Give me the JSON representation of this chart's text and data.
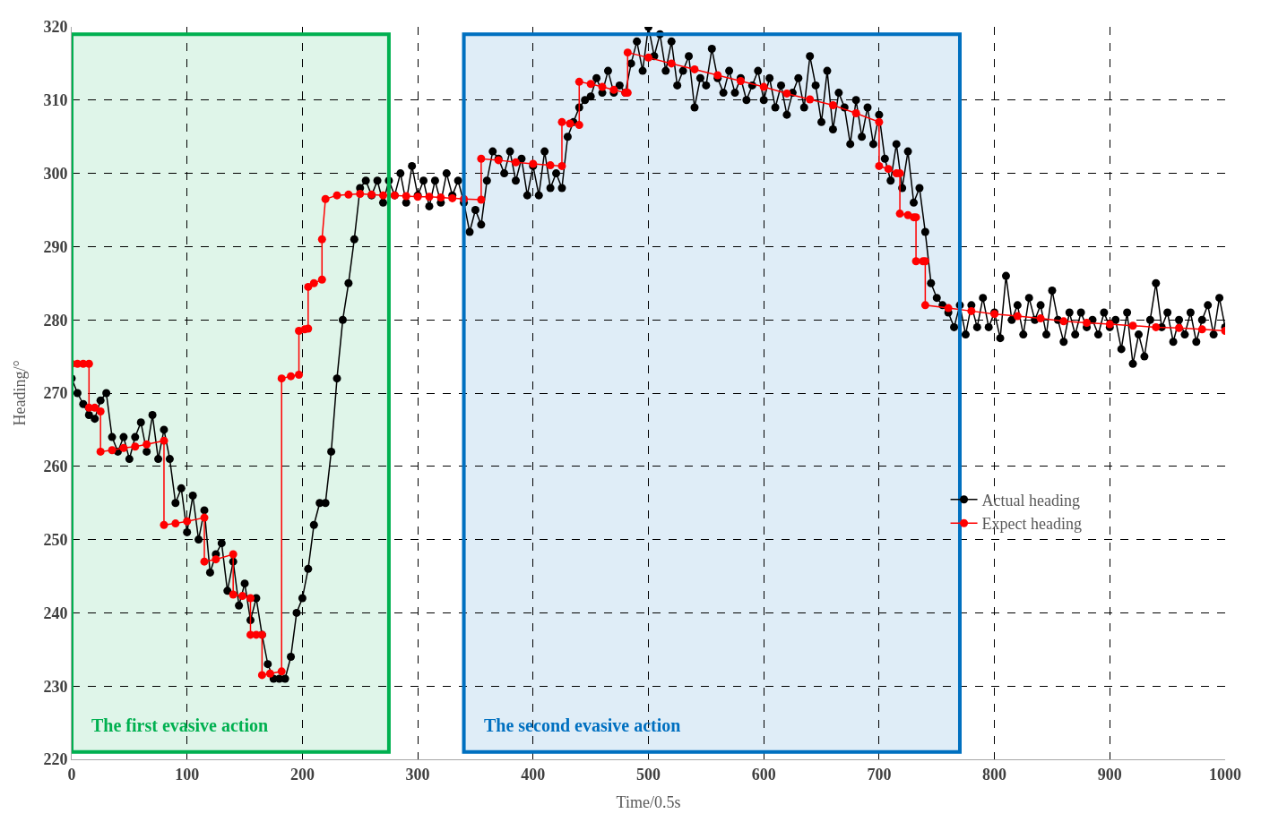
{
  "chart_data": {
    "type": "line",
    "xlabel": "Time/0.5s",
    "ylabel": "Heading/°",
    "xlim": [
      0,
      1000
    ],
    "xticks": [
      0,
      100,
      200,
      300,
      400,
      500,
      600,
      700,
      800,
      900,
      1000
    ],
    "ylim": [
      220,
      320
    ],
    "yticks": [
      220,
      230,
      240,
      250,
      260,
      270,
      280,
      290,
      300,
      310,
      320
    ],
    "grid": true,
    "legend": "bottom right",
    "marker": "circle",
    "line_style": "solid",
    "bands": [
      {
        "axis": "x",
        "from": 0,
        "to": 275,
        "label": "The first evasive action",
        "color": "#00b050"
      },
      {
        "axis": "x",
        "from": 340,
        "to": 770,
        "label": "The second evasive action",
        "color": "#0070c0"
      }
    ],
    "series": [
      {
        "name": "Actual heading",
        "color": "#000000",
        "x": [
          0,
          5,
          10,
          15,
          20,
          25,
          30,
          35,
          40,
          45,
          50,
          55,
          60,
          65,
          70,
          75,
          80,
          85,
          90,
          95,
          100,
          105,
          110,
          115,
          120,
          125,
          130,
          135,
          140,
          145,
          150,
          155,
          160,
          165,
          170,
          175,
          180,
          185,
          190,
          195,
          200,
          205,
          210,
          215,
          220,
          225,
          230,
          235,
          240,
          245,
          250,
          255,
          260,
          265,
          270,
          275,
          280,
          285,
          290,
          295,
          300,
          305,
          310,
          315,
          320,
          325,
          330,
          335,
          340,
          345,
          350,
          355,
          360,
          365,
          370,
          375,
          380,
          385,
          390,
          395,
          400,
          405,
          410,
          415,
          420,
          425,
          430,
          435,
          440,
          445,
          450,
          455,
          460,
          465,
          470,
          475,
          480,
          485,
          490,
          495,
          500,
          505,
          510,
          515,
          520,
          525,
          530,
          535,
          540,
          545,
          550,
          555,
          560,
          565,
          570,
          575,
          580,
          585,
          590,
          595,
          600,
          605,
          610,
          615,
          620,
          625,
          630,
          635,
          640,
          645,
          650,
          655,
          660,
          665,
          670,
          675,
          680,
          685,
          690,
          695,
          700,
          705,
          710,
          715,
          720,
          725,
          730,
          735,
          740,
          745,
          750,
          755,
          760,
          765,
          770,
          775,
          780,
          785,
          790,
          795,
          800,
          805,
          810,
          815,
          820,
          825,
          830,
          835,
          840,
          845,
          850,
          855,
          860,
          865,
          870,
          875,
          880,
          885,
          890,
          895,
          900,
          905,
          910,
          915,
          920,
          925,
          930,
          935,
          940,
          945,
          950,
          955,
          960,
          965,
          970,
          975,
          980,
          985,
          990,
          995,
          1000
        ],
        "values": [
          272,
          270,
          268.5,
          267,
          266.5,
          269,
          270,
          264,
          262,
          264,
          261,
          264,
          266,
          262,
          267,
          261,
          265,
          261,
          255,
          257,
          251,
          256,
          250,
          254,
          245.5,
          248,
          249.5,
          243,
          247,
          241,
          244,
          239,
          242,
          237,
          233,
          231,
          231,
          231,
          234,
          240,
          242,
          246,
          252,
          255,
          255,
          262,
          272,
          280,
          285,
          291,
          298,
          299,
          297,
          299,
          296,
          299,
          297,
          300,
          296,
          301,
          297,
          299,
          295.5,
          299,
          296,
          300,
          297,
          299,
          296,
          292,
          295,
          293,
          299,
          303,
          302,
          300,
          303,
          299,
          302,
          297,
          301,
          297,
          303,
          298,
          300,
          298,
          305,
          307,
          309,
          310,
          310.5,
          313,
          311,
          314,
          311,
          312,
          311,
          315,
          318,
          314,
          320,
          316,
          319,
          314,
          318,
          312,
          314,
          316,
          309,
          313,
          312,
          317,
          313,
          311,
          314,
          311,
          313,
          310,
          312,
          314,
          310,
          313,
          309,
          312,
          308,
          311,
          313,
          309,
          316,
          312,
          307,
          314,
          306,
          311,
          309,
          304,
          310,
          305,
          309,
          304,
          308,
          302,
          299,
          304,
          298,
          303,
          296,
          298,
          292,
          285,
          283,
          282,
          281,
          279,
          282,
          278,
          282,
          279,
          283,
          279,
          281,
          277.5,
          286,
          280,
          282,
          278,
          283,
          280,
          282,
          278,
          284,
          280,
          277,
          281,
          278,
          281,
          279,
          280,
          278,
          281,
          279,
          280,
          276,
          281,
          274,
          278,
          275,
          280,
          285,
          279,
          281,
          277,
          280,
          278,
          281,
          277,
          280,
          282,
          278,
          283,
          279
        ]
      },
      {
        "name": "Expect heading",
        "color": "#ff0000",
        "x": [
          0,
          5,
          10,
          15,
          15,
          20,
          25,
          25,
          35,
          45,
          55,
          65,
          80,
          80,
          90,
          100,
          115,
          115,
          125,
          140,
          140,
          148,
          155,
          155,
          160,
          165,
          165,
          172,
          182,
          182,
          190,
          197,
          197,
          202,
          205,
          205,
          210,
          217,
          217,
          220,
          230,
          240,
          250,
          260,
          270,
          280,
          290,
          300,
          310,
          320,
          330,
          340,
          355,
          355,
          370,
          385,
          400,
          415,
          425,
          425,
          432,
          440,
          440,
          450,
          460,
          470,
          480,
          482,
          482,
          500,
          520,
          540,
          560,
          580,
          600,
          620,
          640,
          660,
          680,
          700,
          700,
          708,
          715,
          718,
          718,
          725,
          730,
          732,
          732,
          738,
          740,
          740,
          760,
          780,
          800,
          820,
          840,
          860,
          880,
          900,
          920,
          940,
          960,
          980,
          1000
        ],
        "values": [
          274,
          274,
          274,
          274,
          268,
          268,
          267.5,
          262,
          262.2,
          262.5,
          262.7,
          263,
          263.5,
          252,
          252.2,
          252.5,
          253,
          247,
          247.3,
          248,
          242.5,
          242.3,
          242,
          237,
          237,
          237,
          231.5,
          231.7,
          232,
          272,
          272.3,
          272.5,
          278.5,
          278.7,
          278.8,
          284.5,
          285,
          285.5,
          291,
          296.5,
          297,
          297.1,
          297.2,
          297.1,
          297,
          297,
          296.9,
          296.8,
          296.8,
          296.7,
          296.6,
          296.5,
          296.4,
          302,
          301.8,
          301.5,
          301.3,
          301.1,
          301,
          307,
          306.8,
          306.6,
          312.5,
          312.2,
          311.8,
          311.4,
          311,
          311,
          316.5,
          315.8,
          315,
          314.2,
          313.4,
          312.6,
          311.8,
          310.9,
          310.1,
          309.3,
          308.2,
          307,
          301,
          300.6,
          300,
          300,
          294.5,
          294.3,
          294,
          294,
          288,
          288,
          288,
          282,
          281.6,
          281.2,
          280.8,
          280.5,
          280.2,
          279.8,
          279.6,
          279.4,
          279.2,
          279,
          278.9,
          278.7,
          278.5
        ]
      }
    ]
  }
}
